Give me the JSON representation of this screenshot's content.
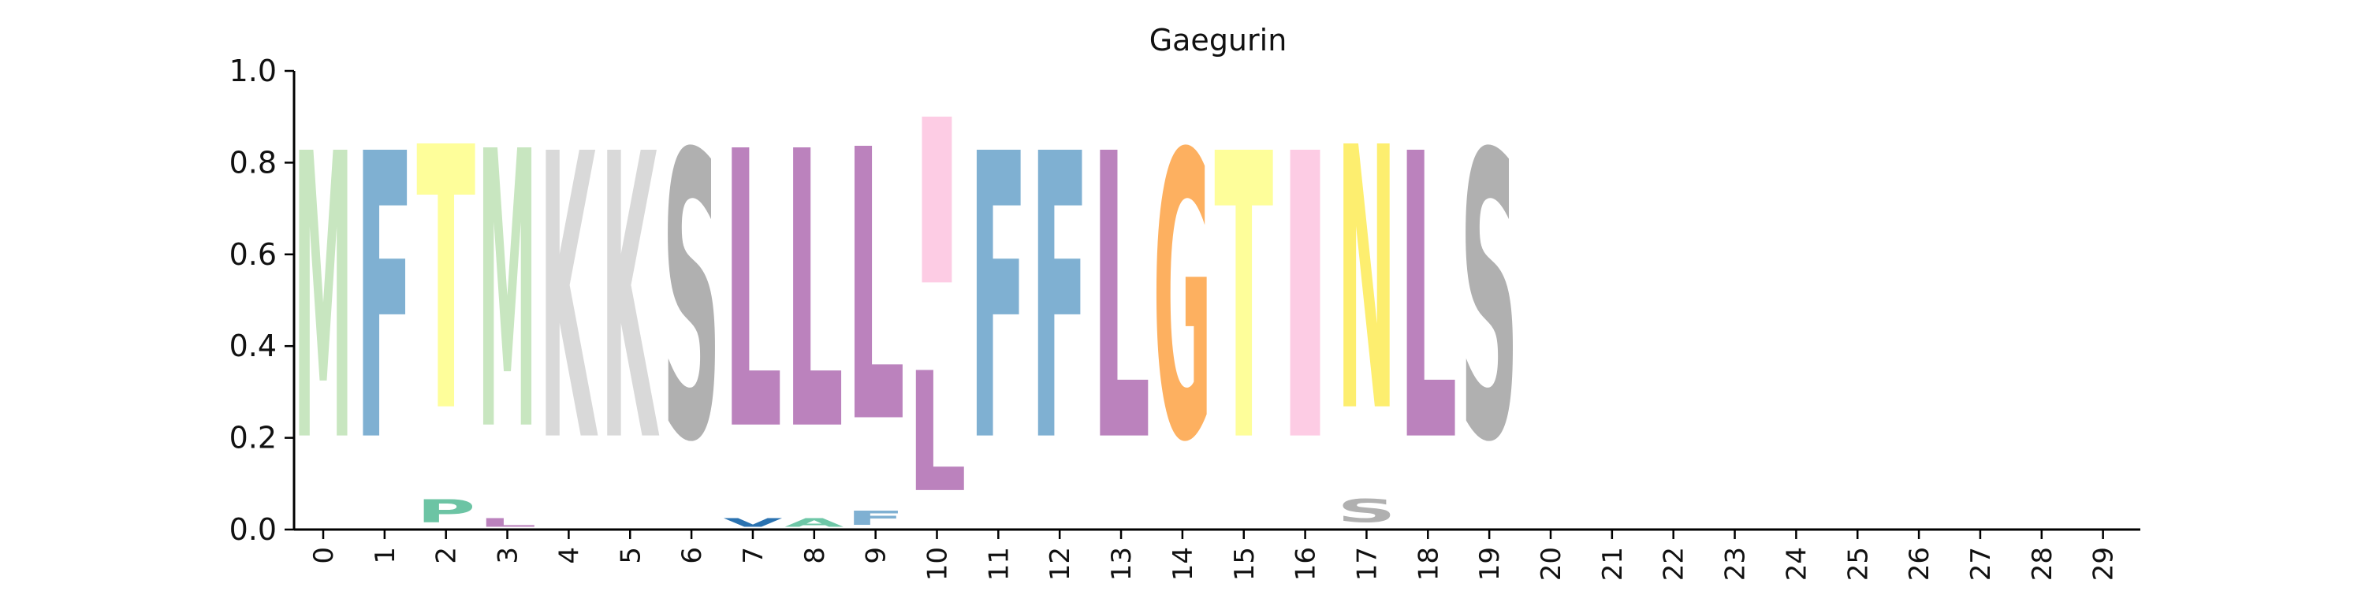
{
  "chart_data": {
    "type": "sequence_logo",
    "title": "Gaegurin",
    "xlabel": "",
    "ylabel": "",
    "ylim": [
      0,
      1
    ],
    "yticks": [
      "0.0",
      "0.2",
      "0.4",
      "0.6",
      "0.8",
      "1.0"
    ],
    "xticks": [
      "0",
      "1",
      "2",
      "3",
      "4",
      "5",
      "6",
      "7",
      "8",
      "9",
      "10",
      "11",
      "12",
      "13",
      "14",
      "15",
      "16",
      "17",
      "18",
      "19",
      "20",
      "21",
      "22",
      "23",
      "24",
      "25",
      "26",
      "27",
      "28",
      "29"
    ],
    "colors": {
      "M": "#c8e6c0",
      "F": "#7fb0d2",
      "T": "#fefe9a",
      "P": "#6cc4a4",
      "K": "#d9d9d9",
      "S": "#b0b0b0",
      "L": "#bb82bd",
      "V": "#2a72b0",
      "I": "#fdcce4",
      "G": "#fdb060",
      "N": "#fdee6f",
      "A": "#6ec7a7"
    },
    "positions": [
      {
        "pos": 0,
        "letters": [
          {
            "char": "M",
            "height": 1.0
          }
        ]
      },
      {
        "pos": 1,
        "letters": [
          {
            "char": "F",
            "height": 1.0
          }
        ]
      },
      {
        "pos": 2,
        "letters": [
          {
            "char": "P",
            "height": 0.08
          },
          {
            "char": "T",
            "height": 0.92
          }
        ]
      },
      {
        "pos": 3,
        "letters": [
          {
            "char": "L",
            "height": 0.03
          },
          {
            "char": "M",
            "height": 0.97
          }
        ]
      },
      {
        "pos": 4,
        "letters": [
          {
            "char": "K",
            "height": 1.0
          }
        ]
      },
      {
        "pos": 5,
        "letters": [
          {
            "char": "K",
            "height": 1.0
          }
        ]
      },
      {
        "pos": 6,
        "letters": [
          {
            "char": "S",
            "height": 1.0
          }
        ]
      },
      {
        "pos": 7,
        "letters": [
          {
            "char": "V",
            "height": 0.03
          },
          {
            "char": "L",
            "height": 0.97
          }
        ]
      },
      {
        "pos": 8,
        "letters": [
          {
            "char": "A",
            "height": 0.03
          },
          {
            "char": "L",
            "height": 0.97
          }
        ]
      },
      {
        "pos": 9,
        "letters": [
          {
            "char": "F",
            "height": 0.05
          },
          {
            "char": "L",
            "height": 0.95
          }
        ]
      },
      {
        "pos": 10,
        "letters": [
          {
            "char": "L",
            "height": 0.42
          },
          {
            "char": "I",
            "height": 0.58
          }
        ]
      },
      {
        "pos": 11,
        "letters": [
          {
            "char": "F",
            "height": 1.0
          }
        ]
      },
      {
        "pos": 12,
        "letters": [
          {
            "char": "F",
            "height": 1.0
          }
        ]
      },
      {
        "pos": 13,
        "letters": [
          {
            "char": "L",
            "height": 1.0
          }
        ]
      },
      {
        "pos": 14,
        "letters": [
          {
            "char": "G",
            "height": 1.0
          }
        ]
      },
      {
        "pos": 15,
        "letters": [
          {
            "char": "T",
            "height": 1.0
          }
        ]
      },
      {
        "pos": 16,
        "letters": [
          {
            "char": "I",
            "height": 1.0
          }
        ]
      },
      {
        "pos": 17,
        "letters": [
          {
            "char": "S",
            "height": 0.08
          },
          {
            "char": "N",
            "height": 0.92
          }
        ]
      },
      {
        "pos": 18,
        "letters": [
          {
            "char": "L",
            "height": 1.0
          }
        ]
      },
      {
        "pos": 19,
        "letters": [
          {
            "char": "S",
            "height": 1.0
          }
        ]
      }
    ]
  }
}
